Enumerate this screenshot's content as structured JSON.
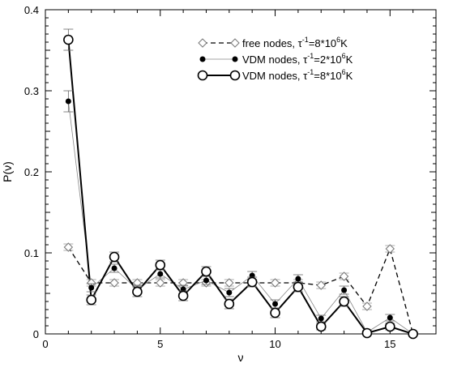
{
  "chart_data": {
    "type": "line",
    "title": "",
    "xlabel": "ν",
    "ylabel": "P(ν)",
    "xlim": [
      0,
      17
    ],
    "ylim": [
      0,
      0.4
    ],
    "xticks": [
      0,
      5,
      10,
      15
    ],
    "yticks": [
      0,
      0.1,
      0.2,
      0.3,
      0.4
    ],
    "xtick_labels": [
      "0",
      "5",
      "10",
      "15"
    ],
    "ytick_labels": [
      "0",
      "0.1",
      "0.2",
      "0.3",
      "0.4"
    ],
    "grid": false,
    "legend_position": "top-right",
    "x": [
      1,
      2,
      3,
      4,
      5,
      6,
      7,
      8,
      9,
      10,
      11,
      12,
      13,
      14,
      15,
      16
    ],
    "series": [
      {
        "name": "free nodes, τ⁻¹=8*10⁶K",
        "legend_parts": [
          "free nodes, τ",
          "-1",
          "=8*10",
          "6",
          "K"
        ],
        "marker": "diamond-open",
        "line_style": "dashed",
        "color": "#000000",
        "values": [
          0.107,
          0.063,
          0.063,
          0.063,
          0.063,
          0.063,
          0.063,
          0.063,
          0.063,
          0.063,
          0.063,
          0.06,
          0.071,
          0.034,
          0.105,
          0.0
        ],
        "errors": [
          0.004,
          0.004,
          0.004,
          0.004,
          0.004,
          0.004,
          0.004,
          0.004,
          0.004,
          0.004,
          0.004,
          0.004,
          0.004,
          0.004,
          0.004,
          0.002
        ]
      },
      {
        "name": "VDM nodes, τ⁻¹=2*10⁶K",
        "legend_parts": [
          "VDM nodes, τ",
          "-1",
          "=2*10",
          "6",
          "K"
        ],
        "marker": "circle-filled",
        "line_style": "thin",
        "color": "#000000",
        "values": [
          0.287,
          0.057,
          0.081,
          0.055,
          0.074,
          0.055,
          0.066,
          0.051,
          0.072,
          0.037,
          0.068,
          0.019,
          0.054,
          0.002,
          0.02,
          0.0
        ],
        "errors": [
          0.013,
          0.005,
          0.005,
          0.005,
          0.005,
          0.005,
          0.005,
          0.005,
          0.005,
          0.005,
          0.005,
          0.004,
          0.005,
          0.002,
          0.004,
          0.002
        ]
      },
      {
        "name": "VDM nodes, τ⁻¹=8*10⁶K",
        "legend_parts": [
          "VDM nodes, τ",
          "-1",
          "=8*10",
          "6",
          "K"
        ],
        "marker": "circle-open",
        "line_style": "solid-thick",
        "color": "#000000",
        "values": [
          0.363,
          0.042,
          0.095,
          0.052,
          0.085,
          0.047,
          0.077,
          0.037,
          0.064,
          0.026,
          0.058,
          0.009,
          0.04,
          0.001,
          0.009,
          0.0
        ],
        "errors": [
          0.013,
          0.006,
          0.006,
          0.006,
          0.006,
          0.006,
          0.006,
          0.006,
          0.006,
          0.006,
          0.006,
          0.004,
          0.006,
          0.002,
          0.004,
          0.002
        ]
      }
    ]
  }
}
